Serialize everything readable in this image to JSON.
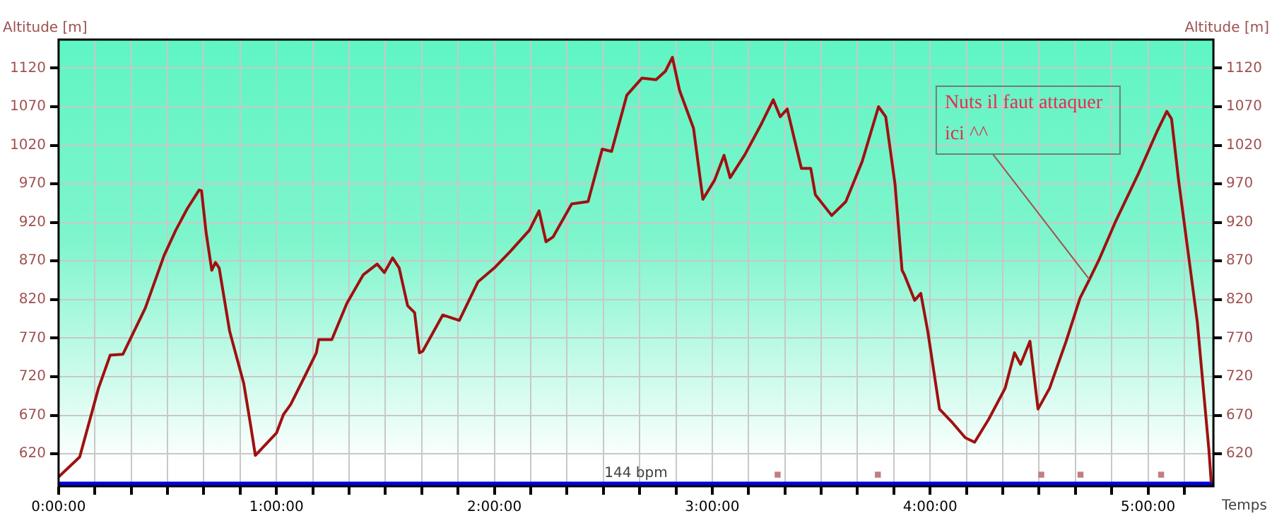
{
  "chart_data": {
    "type": "line",
    "ylabel": "Altitude [m]",
    "y2label": "Altitude [m]",
    "xlabel": "Temps",
    "x": [
      0,
      0.075,
      0.097,
      0.183,
      0.237,
      0.295,
      0.398,
      0.484,
      0.538,
      0.591,
      0.645,
      0.656,
      0.677,
      0.703,
      0.72,
      0.737,
      0.785,
      0.85,
      0.882,
      0.903,
      1.0,
      1.032,
      1.065,
      1.129,
      1.183,
      1.194,
      1.254,
      1.323,
      1.398,
      1.462,
      1.495,
      1.533,
      1.563,
      1.602,
      1.634,
      1.656,
      1.671,
      1.763,
      1.839,
      1.925,
      2.0,
      2.075,
      2.161,
      2.205,
      2.237,
      2.269,
      2.355,
      2.43,
      2.495,
      2.538,
      2.608,
      2.677,
      2.742,
      2.785,
      2.817,
      2.85,
      2.914,
      2.957,
      3.011,
      3.054,
      3.082,
      3.15,
      3.226,
      3.28,
      3.312,
      3.344,
      3.409,
      3.452,
      3.473,
      3.548,
      3.613,
      3.688,
      3.763,
      3.796,
      3.839,
      3.871,
      3.882,
      3.929,
      3.957,
      3.989,
      4.043,
      4.097,
      4.161,
      4.204,
      4.269,
      4.344,
      4.387,
      4.415,
      4.458,
      4.495,
      4.548,
      4.624,
      4.688,
      4.731,
      4.774,
      4.849,
      4.957,
      5.043,
      5.086,
      5.108,
      5.14,
      5.183,
      5.226,
      5.279,
      5.29
    ],
    "series": [
      {
        "color": "#a01010",
        "values": [
          590,
          610,
          616,
          705,
          748,
          749,
          809,
          877,
          910,
          938,
          962,
          961,
          907,
          858,
          868,
          861,
          779,
          711,
          656,
          618,
          647,
          671,
          684,
          720,
          751,
          768,
          768,
          815,
          852,
          866,
          855,
          874,
          861,
          812,
          803,
          751,
          753,
          800,
          793,
          843,
          861,
          883,
          910,
          935,
          895,
          901,
          944,
          947,
          1015,
          1012,
          1085,
          1107,
          1105,
          1116,
          1134,
          1091,
          1042,
          950,
          975,
          1007,
          978,
          1008,
          1048,
          1079,
          1057,
          1067,
          990,
          990,
          956,
          929,
          947,
          999,
          1070,
          1057,
          969,
          858,
          852,
          819,
          828,
          779,
          678,
          662,
          641,
          635,
          665,
          705,
          751,
          736,
          766,
          678,
          705,
          766,
          822,
          846,
          871,
          920,
          984,
          1039,
          1064,
          1054,
          975,
          883,
          791,
          626,
          583
        ]
      },
      {
        "type": "scatter",
        "marker": "square",
        "color": "#c08080",
        "x": [
          3.3,
          3.76,
          4.51,
          4.69,
          5.06
        ],
        "values": [
          593,
          593,
          593,
          593,
          593
        ]
      }
    ],
    "xlim": [
      0,
      5.3
    ],
    "xticks": [
      {
        "value": 0,
        "label": "0:00:00"
      },
      {
        "value": 0.16667,
        "label": null
      },
      {
        "value": 0.33333,
        "label": null
      },
      {
        "value": 0.5,
        "label": null
      },
      {
        "value": 0.66667,
        "label": null
      },
      {
        "value": 0.83333,
        "label": null
      },
      {
        "value": 1,
        "label": "1:00:00"
      },
      {
        "value": 1.16667,
        "label": null
      },
      {
        "value": 1.33333,
        "label": null
      },
      {
        "value": 1.5,
        "label": null
      },
      {
        "value": 1.66667,
        "label": null
      },
      {
        "value": 1.83333,
        "label": null
      },
      {
        "value": 2,
        "label": "2:00:00"
      },
      {
        "value": 2.16667,
        "label": null
      },
      {
        "value": 2.33333,
        "label": null
      },
      {
        "value": 2.5,
        "label": null
      },
      {
        "value": 2.66667,
        "label": null
      },
      {
        "value": 2.83333,
        "label": null
      },
      {
        "value": 3,
        "label": "3:00:00"
      },
      {
        "value": 3.16667,
        "label": null
      },
      {
        "value": 3.33333,
        "label": null
      },
      {
        "value": 3.5,
        "label": null
      },
      {
        "value": 3.66667,
        "label": null
      },
      {
        "value": 3.83333,
        "label": null
      },
      {
        "value": 4,
        "label": "4:00:00"
      },
      {
        "value": 4.16667,
        "label": null
      },
      {
        "value": 4.33333,
        "label": null
      },
      {
        "value": 4.5,
        "label": null
      },
      {
        "value": 4.66667,
        "label": null
      },
      {
        "value": 4.83333,
        "label": null
      },
      {
        "value": 5,
        "label": "5:00:00"
      },
      {
        "value": 5.16667,
        "label": null
      }
    ],
    "ylim": [
      578,
      1157
    ],
    "yticks": [
      620,
      670,
      720,
      770,
      820,
      870,
      920,
      970,
      1020,
      1070,
      1120
    ],
    "y2lim": [
      578,
      1157
    ],
    "y2ticks": [
      620,
      670,
      720,
      770,
      820,
      870,
      920,
      970,
      1020,
      1070,
      1120
    ],
    "bands": [
      {
        "axis": "y",
        "from": 578,
        "to": 584,
        "label": "144 bpm",
        "color": "#0000e0"
      }
    ],
    "annotations": [
      {
        "text": "Nuts il faut attaquer ici ^^",
        "x": 4.731,
        "y": 846
      }
    ],
    "grid": true,
    "legend": false,
    "marker": "none",
    "line_style": "solid"
  }
}
